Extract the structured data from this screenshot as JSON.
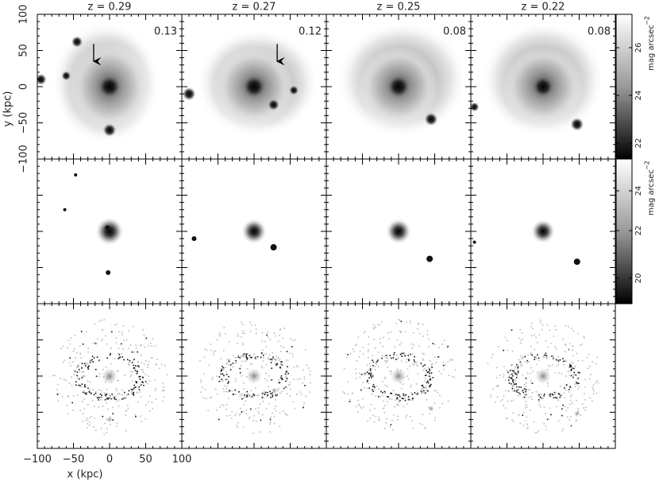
{
  "columns": [
    {
      "title": "z = 0.29",
      "label": "0.13"
    },
    {
      "title": "z = 0.27",
      "label": "0.12"
    },
    {
      "title": "z = 0.25",
      "label": "0.08"
    },
    {
      "title": "z = 0.22",
      "label": "0.08"
    }
  ],
  "y_axis": {
    "label": "y (kpc)",
    "ticks": [
      "100",
      "50",
      "0",
      "−50",
      "−100"
    ]
  },
  "x_axis": {
    "label": "x (kpc)",
    "ticks": [
      "−100",
      "−50",
      "0",
      "50",
      "100"
    ]
  },
  "colorbars": [
    {
      "ticks": [
        "26",
        "24",
        "22"
      ],
      "unit": "mag arcsec",
      "exponent": "−2"
    },
    {
      "ticks": [
        "24",
        "22",
        "20"
      ],
      "unit": "mag arcsec",
      "exponent": "−2"
    }
  ]
}
